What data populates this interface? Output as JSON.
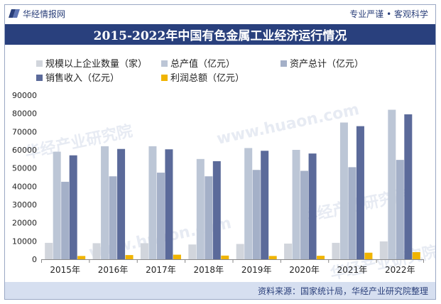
{
  "header": {
    "brand": "华经情报网",
    "slogan": "专业严谨 • 客观科学"
  },
  "title": "2015-2022年中国有色金属工业经济运行情况",
  "footer": {
    "source": "资料来源：国家统计局，华经产业研究院整理"
  },
  "watermarks": [
    "华经产业研究院",
    "www.huaon.com"
  ],
  "colors": {
    "navy": "#29407d",
    "s1": "#d1d5dc",
    "s2": "#bcc6d6",
    "s3": "#a4b0c8",
    "s4": "#5b6a9a",
    "s5": "#f0b400"
  },
  "chart_data": {
    "type": "bar",
    "categories": [
      "2015年",
      "2016年",
      "2017年",
      "2018年",
      "2019年",
      "2020年",
      "2021年",
      "2022年"
    ],
    "ylim": [
      0,
      90000
    ],
    "yticks": [
      "0",
      "10000",
      "20000",
      "30000",
      "40000",
      "50000",
      "60000",
      "70000",
      "80000",
      "90000"
    ],
    "legend_position": "top",
    "series": [
      {
        "name": "规模以上企业数量（家）",
        "color": "#d1d5dc",
        "values": [
          9000,
          8800,
          8800,
          8100,
          8400,
          8600,
          9000,
          9800
        ]
      },
      {
        "name": "总产值（亿元）",
        "color": "#bcc6d6",
        "values": [
          59000,
          62000,
          62000,
          55000,
          61000,
          60000,
          75000,
          82000
        ]
      },
      {
        "name": "资产总计（亿元）",
        "color": "#a4b0c8",
        "values": [
          42500,
          45500,
          47500,
          45500,
          49000,
          48500,
          50500,
          54500
        ]
      },
      {
        "name": "销售收入（亿元）",
        "color": "#5b6a9a",
        "values": [
          57000,
          60500,
          60300,
          53800,
          59500,
          58000,
          73000,
          79500
        ]
      },
      {
        "name": "利润总额（亿元）",
        "color": "#f0b400",
        "values": [
          1800,
          2300,
          2500,
          2000,
          1800,
          1900,
          3600,
          3900
        ]
      }
    ]
  }
}
